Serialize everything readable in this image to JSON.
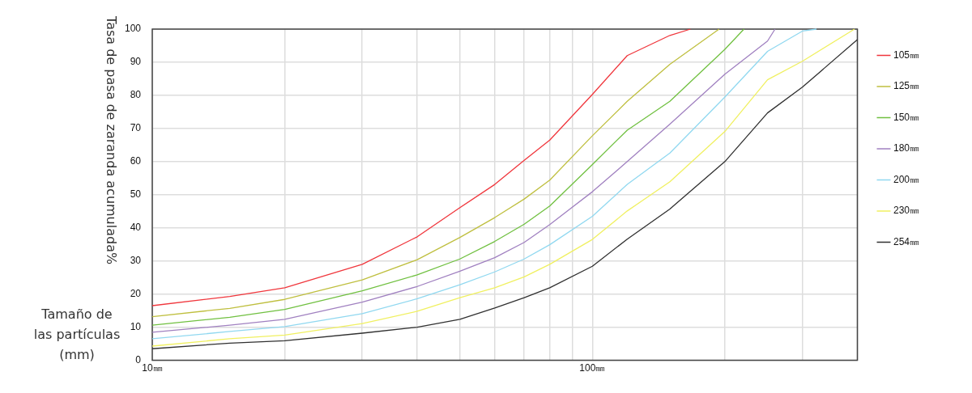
{
  "chart_data": {
    "type": "line",
    "ylabel": "Tasa de pasa de zaranda acumulada%",
    "xlabel": "Tamaño de las partículas (mm)",
    "log": "x",
    "grid": true,
    "legend": "right",
    "xlim": [
      10,
      400
    ],
    "ylim": [
      0,
      100
    ],
    "xticks": [
      {
        "value": 10,
        "label": "10㎜"
      },
      {
        "value": 20,
        "label": null
      },
      {
        "value": 30,
        "label": null
      },
      {
        "value": 40,
        "label": null
      },
      {
        "value": 50,
        "label": null
      },
      {
        "value": 60,
        "label": null
      },
      {
        "value": 70,
        "label": null
      },
      {
        "value": 80,
        "label": null
      },
      {
        "value": 90,
        "label": null
      },
      {
        "value": 100,
        "label": "100㎜"
      },
      {
        "value": 200,
        "label": null
      },
      {
        "value": 300,
        "label": null
      },
      {
        "value": 400,
        "label": null
      }
    ],
    "yticks": [
      0,
      10,
      20,
      30,
      40,
      50,
      60,
      70,
      80,
      90,
      100
    ],
    "series": [
      {
        "name": "105㎜",
        "color": "#f0363c",
        "x": [
          10,
          15,
          20,
          30,
          40,
          50,
          60,
          70,
          80,
          100,
          120,
          150,
          167
        ],
        "values": [
          16.5,
          19.3,
          21.9,
          29.0,
          37.3,
          46.1,
          53.1,
          60.4,
          66.5,
          80.3,
          92.0,
          98.1,
          100
        ]
      },
      {
        "name": "125㎜",
        "color": "#bfbf3f",
        "x": [
          10,
          15,
          20,
          30,
          40,
          50,
          60,
          70,
          80,
          100,
          120,
          150,
          194
        ],
        "values": [
          13.2,
          15.7,
          18.4,
          24.3,
          30.4,
          37.1,
          43.1,
          48.7,
          54.4,
          67.8,
          78.2,
          89.4,
          100
        ]
      },
      {
        "name": "150㎜",
        "color": "#70c040",
        "x": [
          10,
          15,
          20,
          30,
          40,
          50,
          60,
          70,
          80,
          100,
          120,
          150,
          200,
          221
        ],
        "values": [
          10.6,
          13.0,
          15.4,
          21.0,
          25.8,
          30.6,
          35.9,
          41.1,
          46.6,
          59.1,
          69.5,
          78.2,
          93.9,
          100
        ]
      },
      {
        "name": "180㎜",
        "color": "#a080c0",
        "x": [
          10,
          15,
          20,
          30,
          40,
          50,
          60,
          70,
          80,
          100,
          120,
          150,
          200,
          250,
          260
        ],
        "values": [
          8.5,
          10.6,
          12.4,
          17.6,
          22.3,
          26.9,
          31.0,
          35.6,
          41.0,
          50.9,
          60.0,
          71.3,
          86.4,
          96.4,
          100
        ]
      },
      {
        "name": "200㎜",
        "color": "#90d8f0",
        "x": [
          10,
          15,
          20,
          30,
          40,
          50,
          60,
          70,
          80,
          100,
          120,
          150,
          200,
          250,
          300,
          323
        ],
        "values": [
          6.5,
          8.7,
          10.2,
          14.1,
          18.6,
          22.8,
          26.7,
          30.6,
          34.9,
          43.5,
          53.1,
          62.6,
          79.5,
          93.3,
          99.4,
          100
        ]
      },
      {
        "name": "230㎜",
        "color": "#f0f060",
        "x": [
          10,
          15,
          20,
          30,
          40,
          50,
          60,
          70,
          80,
          100,
          120,
          150,
          200,
          250,
          300,
          394
        ],
        "values": [
          4.3,
          6.5,
          7.6,
          11.1,
          14.8,
          18.9,
          21.9,
          25.2,
          29.0,
          36.5,
          45.1,
          53.9,
          69.1,
          84.7,
          90.3,
          100
        ]
      },
      {
        "name": "254㎜",
        "color": "#303030",
        "x": [
          10,
          15,
          20,
          30,
          40,
          50,
          60,
          70,
          80,
          100,
          120,
          150,
          200,
          250,
          300,
          400
        ],
        "values": [
          3.5,
          5.2,
          5.9,
          8.2,
          10.0,
          12.4,
          15.8,
          18.9,
          21.9,
          28.4,
          36.6,
          45.7,
          60.0,
          74.7,
          82.5,
          96.8
        ]
      }
    ]
  }
}
